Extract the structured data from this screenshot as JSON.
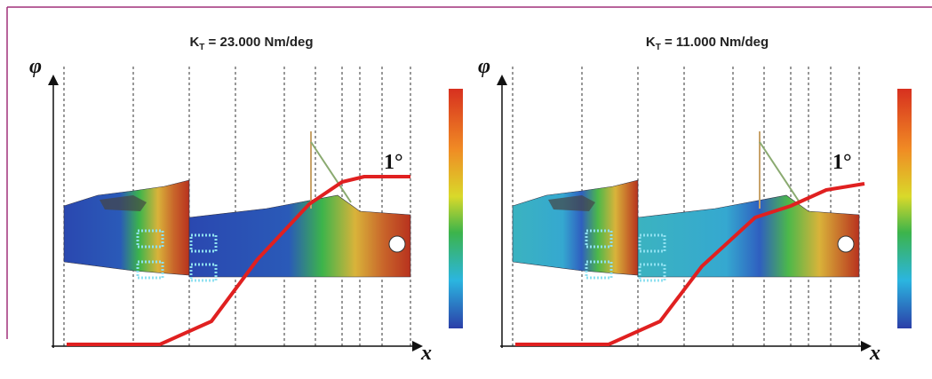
{
  "panels": [
    {
      "title": {
        "symbol": "K",
        "subscript": "T",
        "text": " = 23.000 Nm/deg"
      },
      "y_label": "φ",
      "x_label": "x",
      "annotation": "1°"
    },
    {
      "title": {
        "symbol": "K",
        "subscript": "T",
        "text": " = 11.000 Nm/deg"
      },
      "y_label": "φ",
      "x_label": "x",
      "annotation": "1°"
    }
  ]
}
